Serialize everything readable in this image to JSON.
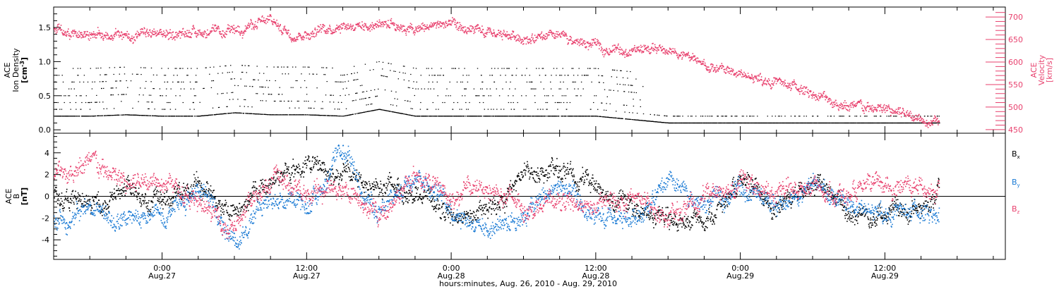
{
  "xlabel": "hours:minutes, Aug. 26, 2010 - Aug. 29, 2010",
  "x_ticks": [
    {
      "t": 0,
      "time": "0:00",
      "date": "Aug.27"
    },
    {
      "t": 12,
      "time": "12:00",
      "date": "Aug.27"
    },
    {
      "t": 24,
      "time": "0:00",
      "date": "Aug.28"
    },
    {
      "t": 36,
      "time": "12:00",
      "date": "Aug.28"
    },
    {
      "t": 48,
      "time": "0:00",
      "date": "Aug.29"
    },
    {
      "t": 60,
      "time": "12:00",
      "date": "Aug.29"
    }
  ],
  "x_unit": "hours since 0:00 Aug.27",
  "xlim": [
    -9,
    70
  ],
  "colors": {
    "black": "#000000",
    "blue": "#1a7ad4",
    "pink": "#e8416e"
  },
  "chart_data": [
    {
      "type": "scatter",
      "panel": "top",
      "ylabel_left": [
        "ACE",
        "Ion Density",
        "[cm",
        "-3",
        "]"
      ],
      "ylabel_right": [
        "ACE",
        "Velocity",
        "[km/s]"
      ],
      "ylim_left": [
        -0.05,
        1.8
      ],
      "yticks_left": [
        "0.0",
        "0.5",
        "1.0",
        "1.5"
      ],
      "yticks_left_values": [
        0,
        0.5,
        1.0,
        1.5
      ],
      "ylim_right": [
        442,
        722
      ],
      "yticks_right": [
        "450",
        "500",
        "550",
        "600",
        "650",
        "700"
      ],
      "yticks_right_values": [
        450,
        500,
        550,
        600,
        650,
        700
      ],
      "series": [
        {
          "color": "black",
          "axis": "left",
          "x": [
            -9,
            -6,
            -3,
            0,
            3,
            6,
            9,
            12,
            15,
            18,
            21,
            24,
            27,
            30,
            33,
            36,
            39,
            42,
            45,
            48,
            51,
            54,
            57,
            60,
            63,
            64.5
          ],
          "y": [
            0.2,
            0.2,
            0.22,
            0.2,
            0.2,
            0.25,
            0.22,
            0.22,
            0.2,
            0.3,
            0.2,
            0.2,
            0.2,
            0.2,
            0.2,
            0.2,
            0.15,
            0.1,
            0.1,
            0.1,
            0.1,
            0.1,
            0.1,
            0.1,
            0.1,
            0.1
          ]
        },
        {
          "color": "pink",
          "axis": "right",
          "x": [
            -9,
            -7,
            -5,
            -3,
            -1,
            1,
            3,
            5,
            7,
            9,
            11,
            13,
            15,
            17,
            19,
            21,
            23,
            25,
            27,
            29,
            31,
            33,
            35,
            37,
            39,
            41,
            43,
            45,
            47,
            49,
            51,
            53,
            55,
            57,
            59,
            61,
            63,
            64.5
          ],
          "y": [
            670,
            665,
            660,
            658,
            660,
            662,
            670,
            660,
            680,
            690,
            660,
            670,
            685,
            680,
            690,
            670,
            685,
            672,
            660,
            660,
            650,
            655,
            640,
            630,
            625,
            630,
            620,
            590,
            580,
            565,
            555,
            540,
            520,
            500,
            495,
            490,
            478,
            470
          ]
        }
      ]
    },
    {
      "type": "scatter",
      "panel": "bottom",
      "ylabel": [
        "ACE",
        "B",
        "[nT]"
      ],
      "ylim": [
        -5.8,
        5.8
      ],
      "yticks": [
        "-4",
        "-2",
        "0",
        "2",
        "4"
      ],
      "yticks_values": [
        -4,
        -2,
        0,
        2,
        4
      ],
      "legend": [
        "B",
        "B",
        "B"
      ],
      "legend_sub": [
        "x",
        "y",
        "z"
      ],
      "legend_placement": "right",
      "series": [
        {
          "color": "black",
          "x": [
            -9,
            -6,
            -3,
            0,
            3,
            6,
            9,
            12,
            15,
            18,
            21,
            24,
            27,
            30,
            33,
            36,
            39,
            42,
            45,
            48,
            51,
            54,
            57,
            60,
            63,
            64.5
          ],
          "y": [
            0,
            -1,
            0.5,
            -0.5,
            1,
            -1.5,
            1.5,
            3,
            2,
            1,
            0.5,
            -2,
            -1.5,
            2,
            2.5,
            1,
            -1,
            -2.5,
            -2,
            1,
            -1,
            1.5,
            -1.5,
            -1.5,
            -1.5,
            1
          ]
        },
        {
          "color": "blue",
          "x": [
            -9,
            -6,
            -3,
            0,
            3,
            6,
            9,
            12,
            15,
            18,
            21,
            24,
            27,
            30,
            33,
            36,
            39,
            42,
            45,
            48,
            51,
            54,
            57,
            60,
            63,
            64.5
          ],
          "y": [
            -2.5,
            -1,
            -2.5,
            -1.5,
            1,
            -4,
            0,
            -1,
            4,
            -2,
            2.5,
            -1,
            -3,
            -1.5,
            1,
            -2.5,
            -2,
            1,
            -1,
            1,
            -1,
            1,
            -1,
            -1.5,
            -1.5,
            -1.5
          ]
        },
        {
          "color": "pink",
          "x": [
            -9,
            -6,
            -3,
            0,
            3,
            6,
            9,
            12,
            15,
            18,
            21,
            24,
            27,
            30,
            33,
            36,
            39,
            42,
            45,
            48,
            51,
            54,
            57,
            60,
            63,
            64.5
          ],
          "y": [
            2,
            3,
            1,
            2,
            -1,
            -3,
            2,
            0,
            1,
            -2,
            2,
            0,
            1,
            -1,
            -0.5,
            -1,
            0,
            -2,
            0,
            1.5,
            0,
            1,
            0,
            1,
            1,
            0.5
          ]
        }
      ]
    }
  ]
}
